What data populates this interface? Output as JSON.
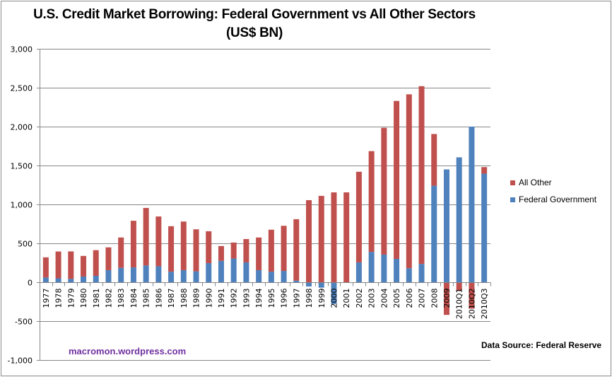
{
  "colors": {
    "federal": "#4f81bd",
    "other": "#c0504d",
    "grid": "#868686"
  },
  "watermark": "macromon.wordpress.com",
  "source": "Data Source:  Federal Reserve",
  "chart_data": {
    "type": "bar",
    "stacked": true,
    "title": "U.S. Credit Market Borrowing:  Federal Government vs All Other Sectors",
    "subtitle": "(US$ BN)",
    "xlabel": "",
    "ylabel": "",
    "ylim": [
      -1000,
      3000
    ],
    "yticks": [
      -1000,
      -500,
      0,
      500,
      1000,
      1500,
      2000,
      2500,
      3000
    ],
    "ytick_labels": [
      "-1,000",
      "-500",
      "0",
      "500",
      "1,000",
      "1,500",
      "2,000",
      "2,500",
      "3,000"
    ],
    "grid": true,
    "legend_position": "right",
    "categories": [
      "1977",
      "1978",
      "1979",
      "1980",
      "1981",
      "1982",
      "1983",
      "1984",
      "1985",
      "1986",
      "1987",
      "1988",
      "1989",
      "1990",
      "1991",
      "1992",
      "1993",
      "1994",
      "1995",
      "1996",
      "1997",
      "1998",
      "1999",
      "2000",
      "2001",
      "2002",
      "2003",
      "2004",
      "2005",
      "2006",
      "2007",
      "2008",
      "2009",
      "2010Q1",
      "2010Q2",
      "2010Q3"
    ],
    "series": [
      {
        "name": "Federal Government",
        "color": "#4f81bd",
        "values": [
          60,
          50,
          43,
          73,
          82,
          155,
          185,
          190,
          215,
          205,
          135,
          155,
          140,
          245,
          275,
          305,
          255,
          155,
          135,
          145,
          20,
          -55,
          -70,
          -280,
          0,
          255,
          390,
          355,
          300,
          180,
          235,
          1240,
          1450,
          1605,
          2000,
          1395
        ]
      },
      {
        "name": "All Other",
        "color": "#c0504d",
        "values": [
          260,
          345,
          353,
          265,
          330,
          293,
          390,
          600,
          740,
          640,
          585,
          625,
          540,
          410,
          190,
          205,
          300,
          420,
          540,
          580,
          790,
          1055,
          1110,
          1155,
          1155,
          1165,
          1295,
          1630,
          2030,
          2235,
          2285,
          665,
          -420,
          -110,
          -340,
          85
        ]
      }
    ],
    "legend": [
      "All Other",
      "Federal Government"
    ]
  }
}
